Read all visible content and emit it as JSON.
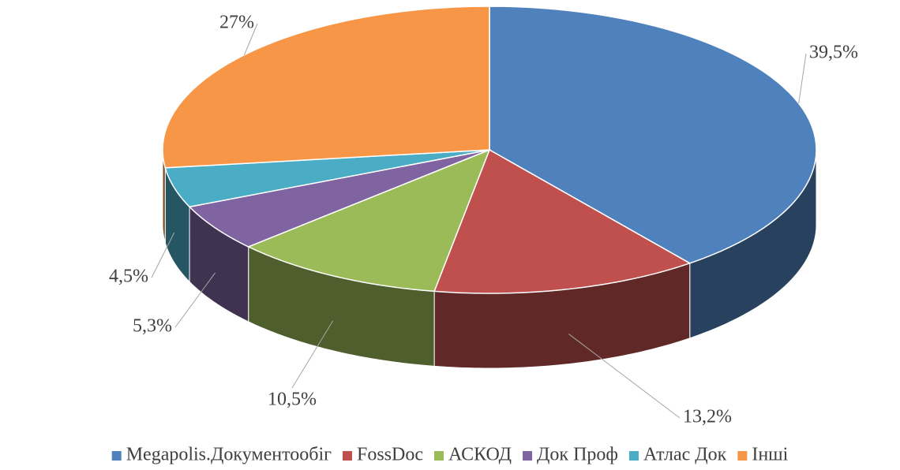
{
  "chart_data": {
    "type": "pie3d",
    "categories": [
      "Megapolis.Документообіг",
      "FossDoc",
      "АСКОД",
      "Док Проф",
      "Атлас Док",
      "Інші"
    ],
    "values": [
      39.5,
      13.2,
      10.5,
      5.3,
      4.5,
      27
    ],
    "value_labels": [
      "39,5%",
      "13,2%",
      "10,5%",
      "5,3%",
      "4,5%",
      "27%"
    ],
    "colors": [
      "#4f81bd",
      "#c0504d",
      "#9bbb59",
      "#8064a2",
      "#4bacc6",
      "#f79646"
    ],
    "legend": "bottom"
  }
}
